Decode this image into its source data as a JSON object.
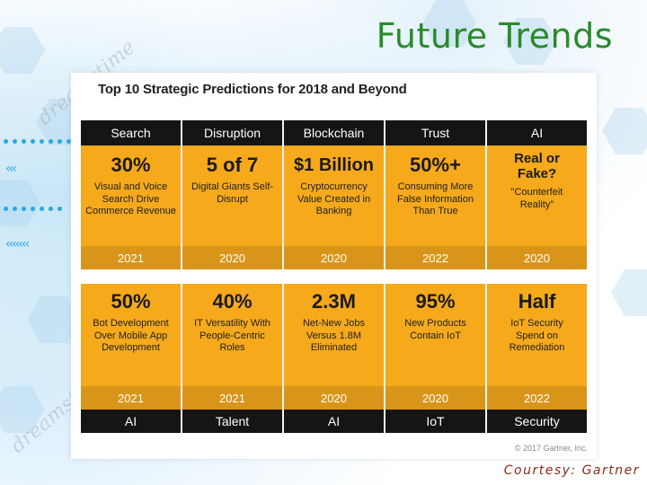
{
  "slide": {
    "title": "Future Trends",
    "courtesy": "Courtesy: Gartner",
    "watermark": "dreamstime"
  },
  "card": {
    "title": "Top 10 Strategic Predictions for 2018 and Beyond",
    "copyright": "© 2017 Gartner, Inc."
  },
  "top_row": [
    {
      "header": "Search",
      "stat": "30%",
      "desc": "Visual and Voice Search Drive Commerce Revenue",
      "year": "2021"
    },
    {
      "header": "Disruption",
      "stat": "5 of 7",
      "desc": "Digital Giants Self-Disrupt",
      "year": "2020"
    },
    {
      "header": "Blockchain",
      "stat": "$1 Billion",
      "desc": "Cryptocurrency Value Created in Banking",
      "year": "2020"
    },
    {
      "header": "Trust",
      "stat": "50%+",
      "desc": "Consuming More False Information Than True",
      "year": "2022"
    },
    {
      "header": "AI",
      "stat": "Real or Fake?",
      "desc": "\"Counterfeit Reality\"",
      "year": "2020"
    }
  ],
  "bottom_row": [
    {
      "stat": "50%",
      "desc": "Bot Development Over Mobile App Development",
      "year": "2021",
      "footer": "AI"
    },
    {
      "stat": "40%",
      "desc": "IT Versatility With People-Centric Roles",
      "year": "2021",
      "footer": "Talent"
    },
    {
      "stat": "2.3M",
      "desc": "Net-New Jobs Versus 1.8M Eliminated",
      "year": "2020",
      "footer": "AI"
    },
    {
      "stat": "95%",
      "desc": "New Products Contain IoT",
      "year": "2020",
      "footer": "IoT"
    },
    {
      "stat": "Half",
      "desc": "IoT Security Spend on Remediation",
      "year": "2022",
      "footer": "Security"
    }
  ],
  "colors": {
    "title_green": "#2a8a2a",
    "panel_orange": "#f5a91b",
    "year_orange": "#d9951a",
    "header_black": "#151515",
    "courtesy_red": "#8b2a1a"
  }
}
